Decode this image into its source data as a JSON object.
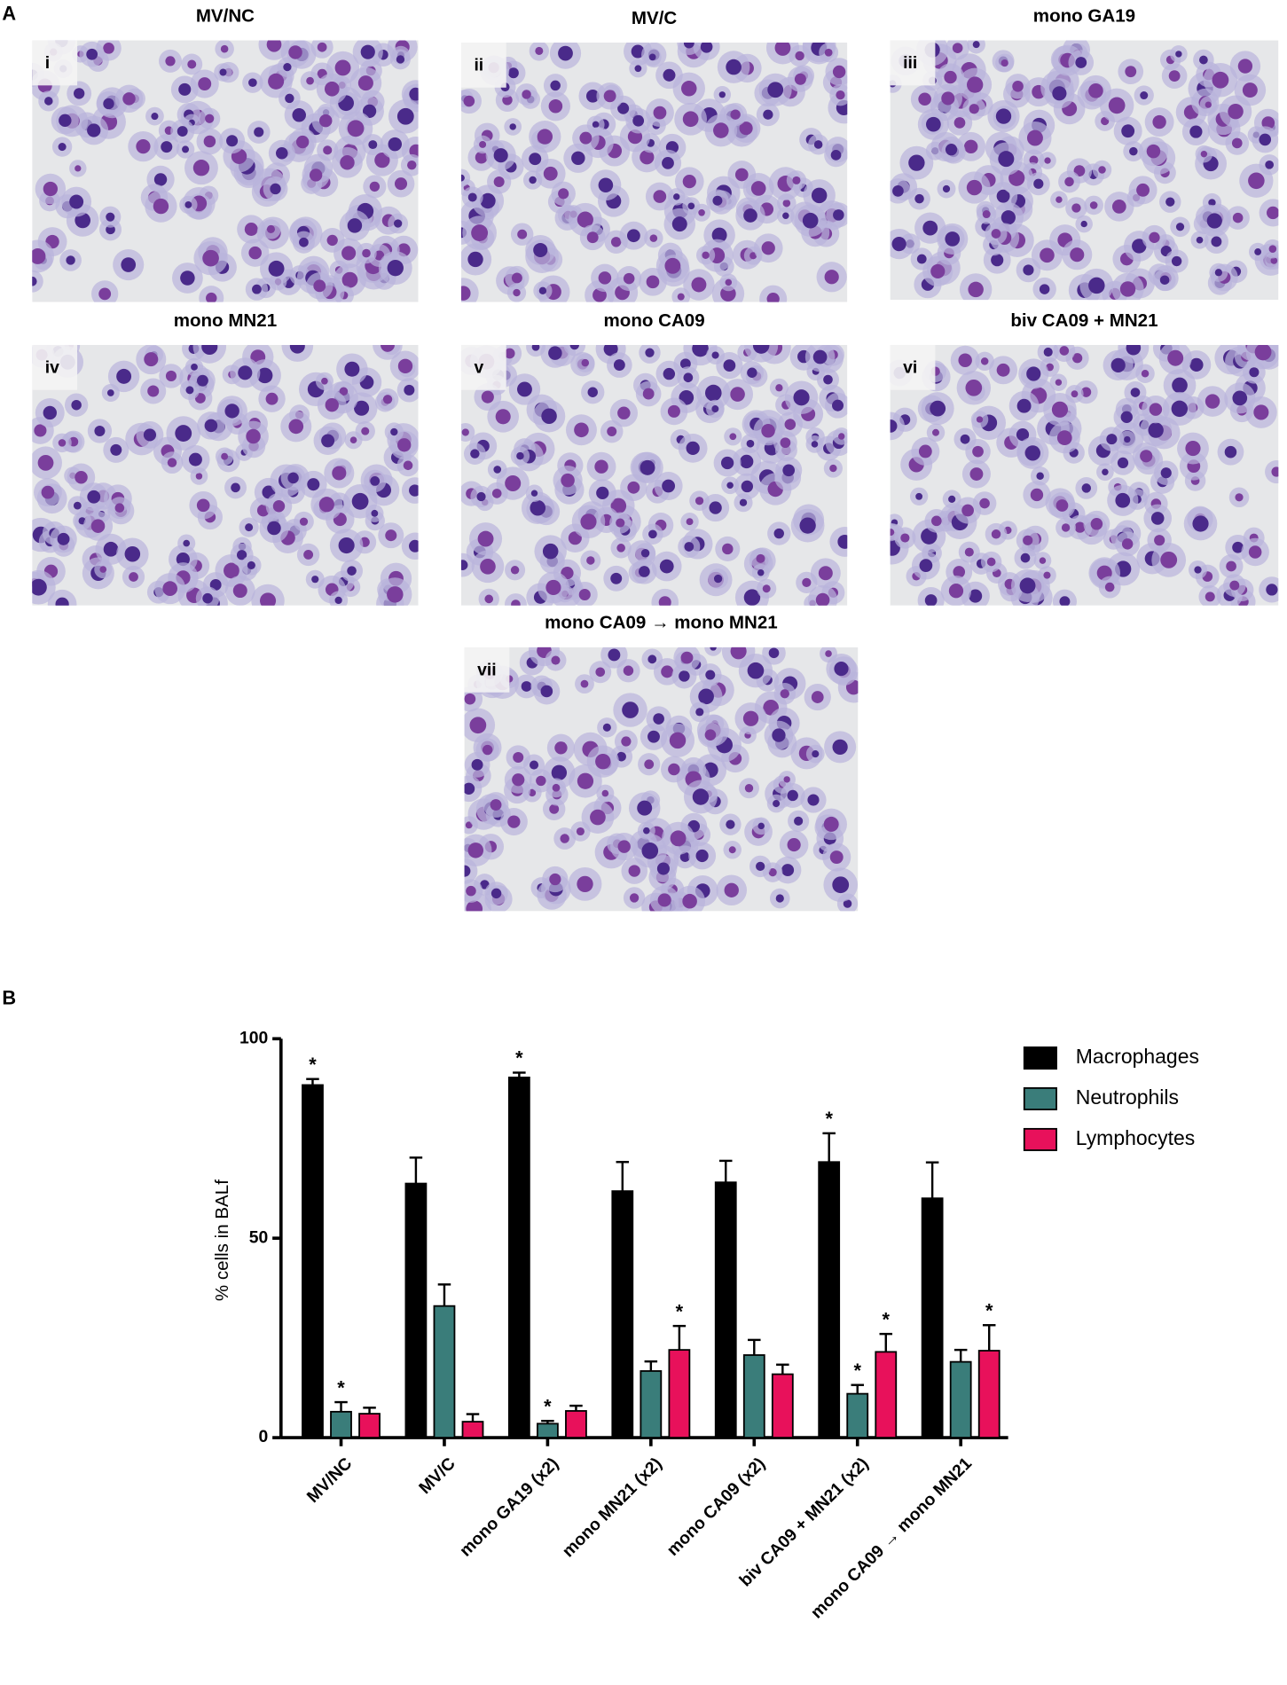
{
  "panel_a": {
    "label": "A",
    "images": [
      {
        "title": "MV/NC",
        "label": "i"
      },
      {
        "title": "MV/C",
        "label": "ii"
      },
      {
        "title": "mono GA19",
        "label": "iii"
      },
      {
        "title": "mono MN21",
        "label": "iv"
      },
      {
        "title": "mono CA09",
        "label": "v"
      },
      {
        "title": "biv CA09 + MN21",
        "label": "vi"
      },
      {
        "title": "mono CA09 → mono MN21",
        "label": "vii"
      }
    ]
  },
  "panel_b": {
    "label": "B"
  },
  "chart_data": {
    "type": "bar",
    "y_label": "% cells in BALf",
    "categories": [
      "MV/NC",
      "MV/C",
      "mono GA19 (x2)",
      "mono MN21 (x2)",
      "mono CA09 (x2)",
      "biv CA09 + MN21 (x2)",
      "mono CA09 → mono MN21"
    ],
    "series": [
      {
        "name": "Macrophages",
        "color": "#000000",
        "values": [
          88.4,
          63.7,
          90.3,
          61.8,
          64,
          69.1,
          60
        ],
        "errors": [
          1.5,
          6.5,
          1.2,
          7.3,
          5.4,
          7.2,
          9
        ],
        "significance": [
          "*",
          null,
          "*",
          null,
          null,
          "*",
          null
        ]
      },
      {
        "name": "Neutrophils",
        "color": "#3a7d7a",
        "values": [
          6.5,
          33,
          3.5,
          16.7,
          20.7,
          11,
          19
        ],
        "errors": [
          2.4,
          5.4,
          0.7,
          2.4,
          3.8,
          2.2,
          3
        ],
        "significance": [
          "*",
          null,
          "*",
          null,
          null,
          "*",
          null
        ]
      },
      {
        "name": "Lymphocytes",
        "color": "#e8115b",
        "values": [
          6,
          4,
          6.7,
          22,
          15.9,
          21.5,
          21.8
        ],
        "errors": [
          1.5,
          1.9,
          1.3,
          6,
          2.4,
          4.5,
          6.4
        ],
        "significance": [
          null,
          null,
          null,
          "*",
          null,
          "*",
          "*"
        ]
      }
    ],
    "ylim": [
      0,
      100
    ],
    "yticks": [
      0,
      50,
      100
    ],
    "legend": "upper right"
  }
}
